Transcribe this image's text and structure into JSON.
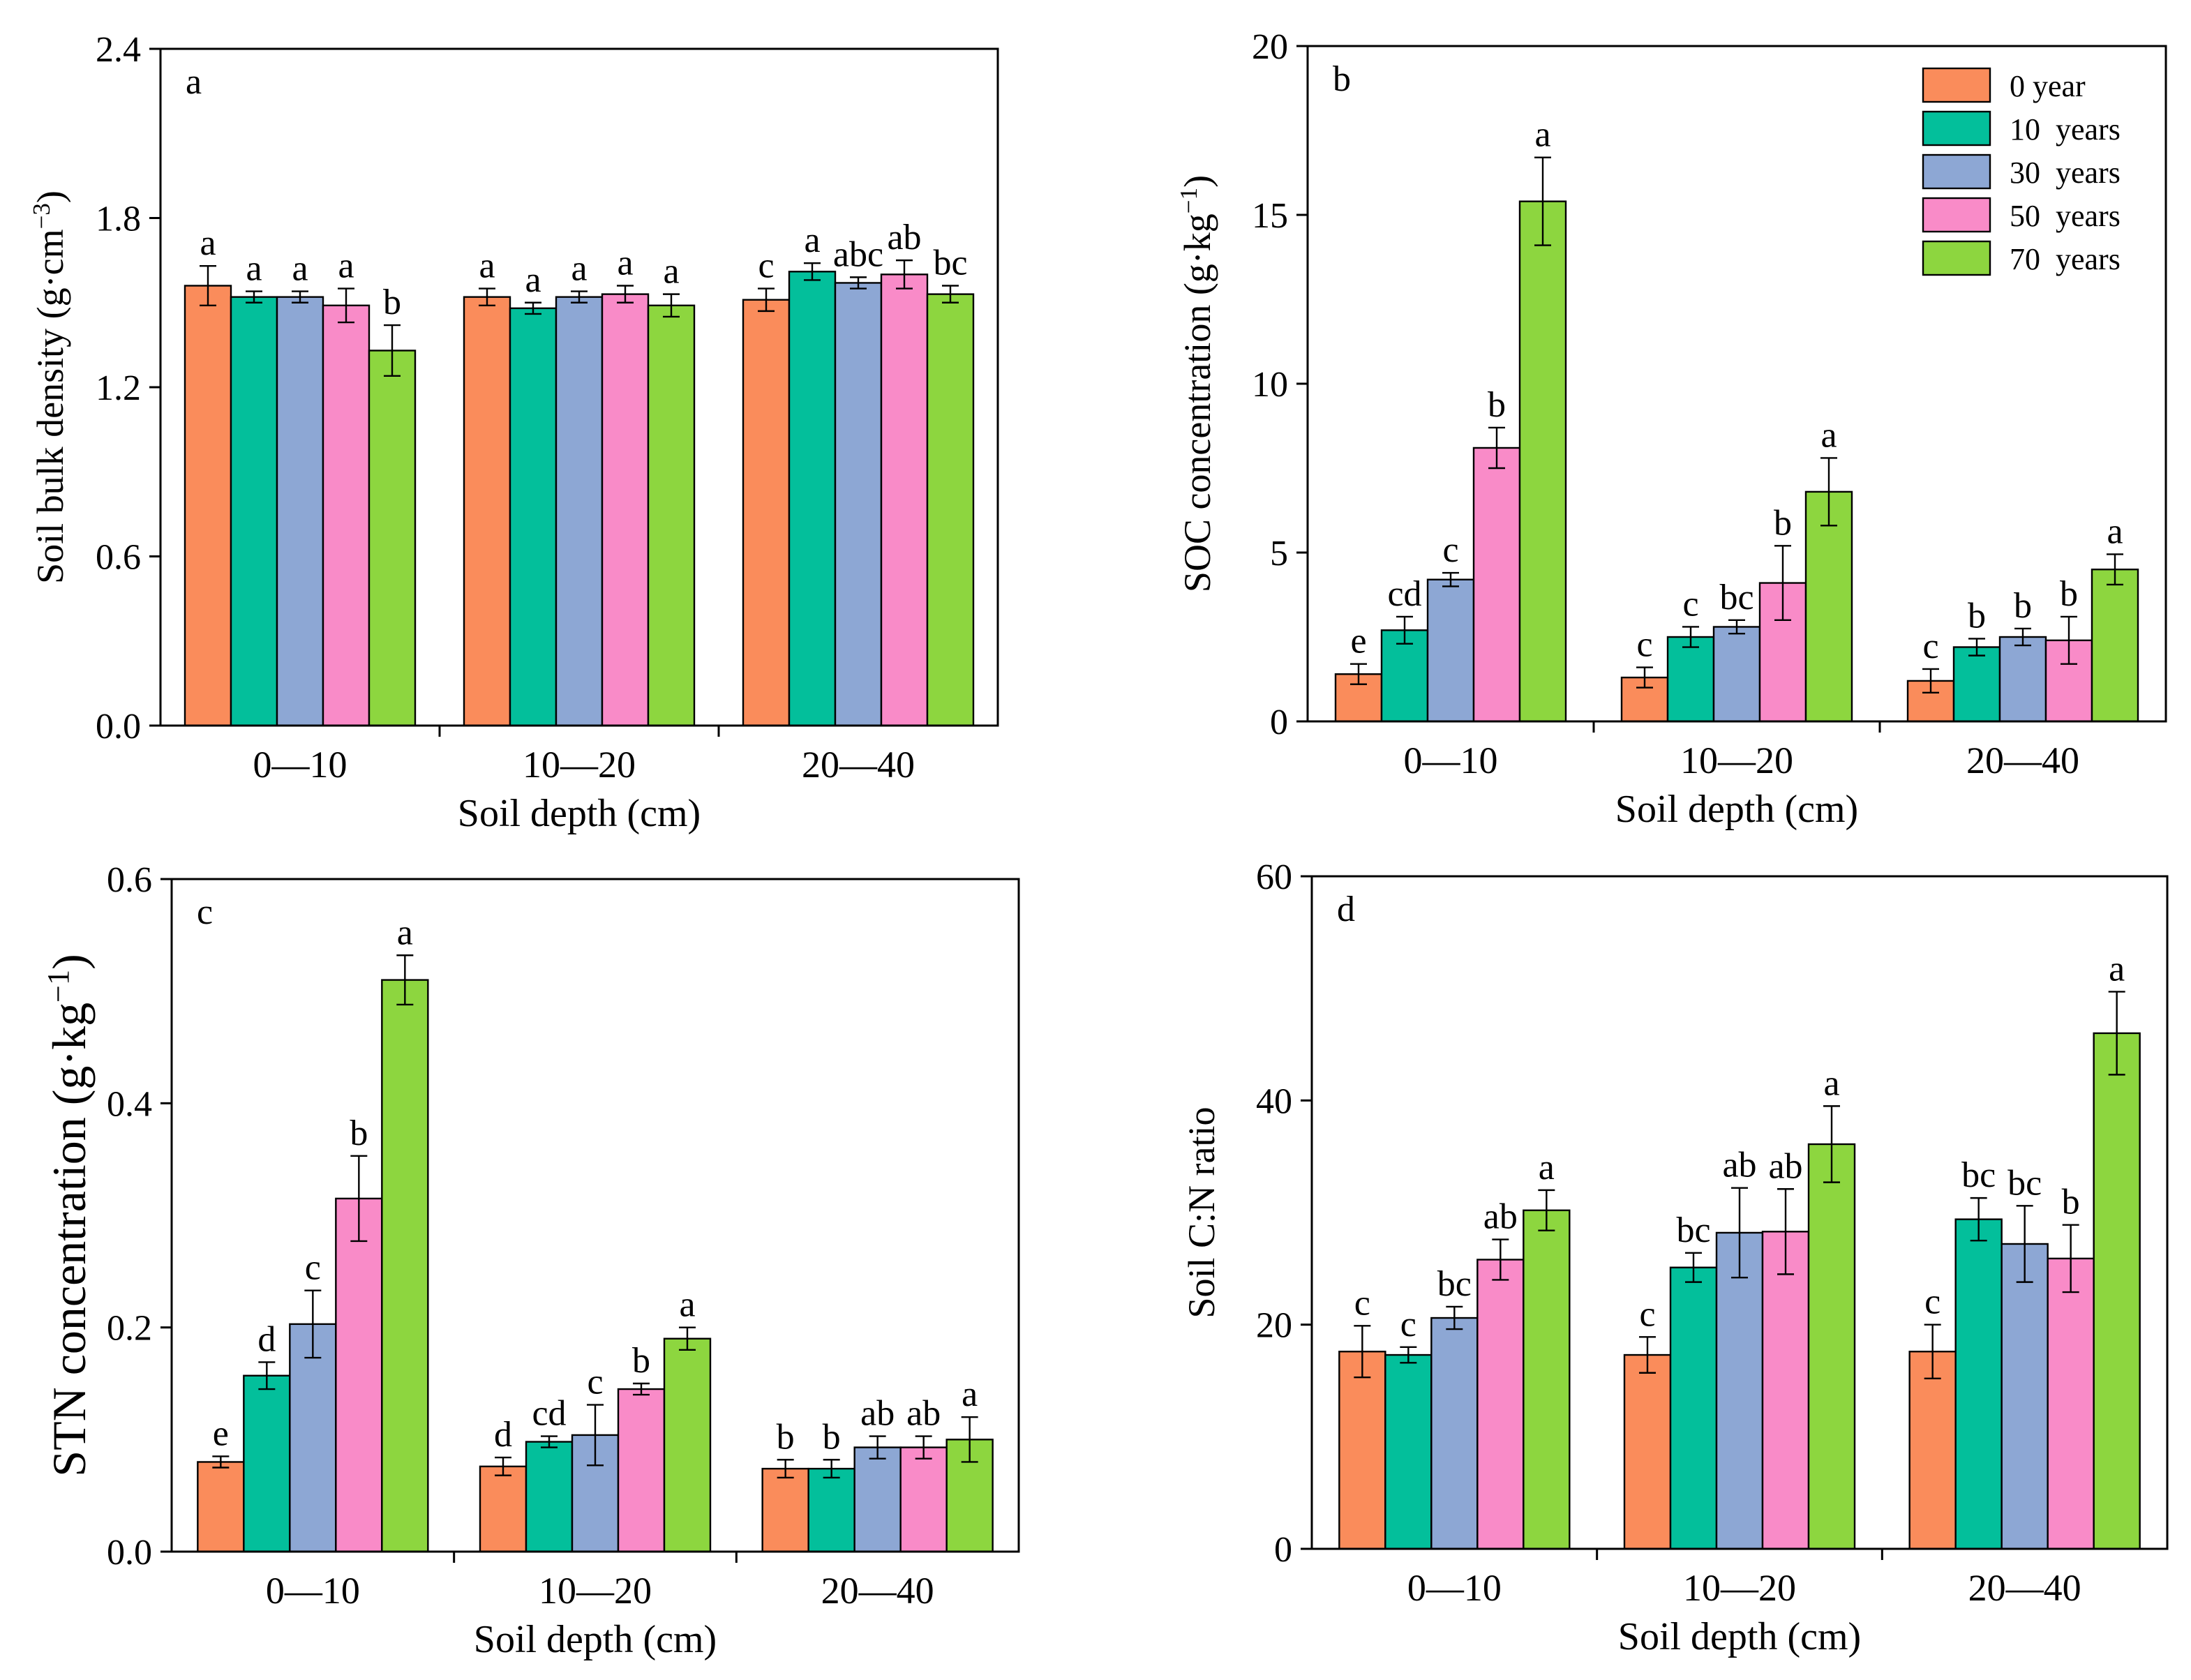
{
  "chart_data": [
    {
      "type": "bar",
      "panel": "a",
      "xlabel": "Soil depth (cm)",
      "ylabel": {
        "text": "Soil bulk density (g·cm",
        "sup": "−3",
        "end": ")"
      },
      "categories": [
        "0—10",
        "10—20",
        "20—40"
      ],
      "ylim": [
        0,
        2.4
      ],
      "yticks": [
        {
          "value": 0,
          "label": "0.0"
        },
        0.6,
        1.2,
        1.8,
        2.4
      ],
      "series": [
        {
          "color": "#fa8c5b",
          "values": [
            1.56,
            1.52,
            1.51
          ],
          "errors": [
            0.07,
            0.03,
            0.04
          ],
          "letters": [
            "a",
            "a",
            "c"
          ]
        },
        {
          "color": "#03bf9b",
          "values": [
            1.52,
            1.48,
            1.61
          ],
          "errors": [
            0.02,
            0.02,
            0.03
          ],
          "letters": [
            "a",
            "a",
            "a"
          ]
        },
        {
          "color": "#8da7d4",
          "values": [
            1.52,
            1.52,
            1.57
          ],
          "errors": [
            0.02,
            0.02,
            0.02
          ],
          "letters": [
            "a",
            "a",
            "abc"
          ]
        },
        {
          "color": "#f98bc8",
          "values": [
            1.49,
            1.53,
            1.6
          ],
          "errors": [
            0.06,
            0.03,
            0.05
          ],
          "letters": [
            "a",
            "a",
            "ab"
          ]
        },
        {
          "color": "#8dd63f",
          "values": [
            1.33,
            1.49,
            1.53
          ],
          "errors": [
            0.09,
            0.04,
            0.03
          ],
          "letters": [
            "b",
            "a",
            "bc"
          ]
        }
      ]
    },
    {
      "type": "bar",
      "panel": "b",
      "xlabel": "Soil depth (cm)",
      "ylabel": {
        "text": "SOC concentration (g·kg",
        "sup": "−1",
        "end": ")"
      },
      "categories": [
        "0—10",
        "10—20",
        "20—40"
      ],
      "ylim": [
        0,
        20
      ],
      "yticks": [
        0,
        5,
        10,
        15,
        20
      ],
      "legend": "upper right",
      "series": [
        {
          "name": "0 year",
          "color": "#fa8c5b",
          "values": [
            1.4,
            1.3,
            1.2
          ],
          "errors": [
            0.3,
            0.3,
            0.35
          ],
          "letters": [
            "e",
            "c",
            "c"
          ]
        },
        {
          "name": "10  years",
          "color": "#03bf9b",
          "values": [
            2.7,
            2.5,
            2.2
          ],
          "errors": [
            0.4,
            0.3,
            0.25
          ],
          "letters": [
            "cd",
            "c",
            "b"
          ]
        },
        {
          "name": "30  years",
          "color": "#8da7d4",
          "values": [
            4.2,
            2.8,
            2.5
          ],
          "errors": [
            0.2,
            0.2,
            0.25
          ],
          "letters": [
            "c",
            "bc",
            "b"
          ]
        },
        {
          "name": "50  years",
          "color": "#f98bc8",
          "values": [
            8.1,
            4.1,
            2.4
          ],
          "errors": [
            0.6,
            1.1,
            0.7
          ],
          "letters": [
            "b",
            "b",
            "b"
          ]
        },
        {
          "name": "70  years",
          "color": "#8dd63f",
          "values": [
            15.4,
            6.8,
            4.5
          ],
          "errors": [
            1.3,
            1.0,
            0.45
          ],
          "letters": [
            "a",
            "a",
            "a"
          ]
        }
      ]
    },
    {
      "type": "bar",
      "panel": "c",
      "xlabel": "Soil depth (cm)",
      "ylabel": {
        "text": "STN concentration (g·kg",
        "sup": "−1",
        "end": ")"
      },
      "categories": [
        "0—10",
        "10—20",
        "20—40"
      ],
      "ylim": [
        0,
        0.6
      ],
      "yticks": [
        {
          "value": 0,
          "label": "0.0"
        },
        0.2,
        0.4,
        0.6
      ],
      "series": [
        {
          "color": "#fa8c5b",
          "values": [
            0.08,
            0.076,
            0.074
          ],
          "errors": [
            0.005,
            0.008,
            0.008
          ],
          "letters": [
            "e",
            "d",
            "b"
          ]
        },
        {
          "color": "#03bf9b",
          "values": [
            0.157,
            0.098,
            0.074
          ],
          "errors": [
            0.012,
            0.005,
            0.008
          ],
          "letters": [
            "d",
            "cd",
            "b"
          ]
        },
        {
          "color": "#8da7d4",
          "values": [
            0.203,
            0.104,
            0.093
          ],
          "errors": [
            0.03,
            0.027,
            0.01
          ],
          "letters": [
            "c",
            "c",
            "ab"
          ]
        },
        {
          "color": "#f98bc8",
          "values": [
            0.315,
            0.145,
            0.093
          ],
          "errors": [
            0.038,
            0.005,
            0.01
          ],
          "letters": [
            "b",
            "b",
            "ab"
          ]
        },
        {
          "color": "#8dd63f",
          "values": [
            0.51,
            0.19,
            0.1
          ],
          "errors": [
            0.022,
            0.01,
            0.02
          ],
          "letters": [
            "a",
            "a",
            "a"
          ]
        }
      ]
    },
    {
      "type": "bar",
      "panel": "d",
      "xlabel": "Soil depth (cm)",
      "ylabel": {
        "text": "Soil C:N ratio"
      },
      "categories": [
        "0—10",
        "10—20",
        "20—40"
      ],
      "ylim": [
        0,
        60
      ],
      "yticks": [
        0,
        20,
        40,
        60
      ],
      "series": [
        {
          "color": "#fa8c5b",
          "values": [
            17.6,
            17.3,
            17.6
          ],
          "errors": [
            2.3,
            1.6,
            2.4
          ],
          "letters": [
            "c",
            "c",
            "c"
          ]
        },
        {
          "color": "#03bf9b",
          "values": [
            17.3,
            25.1,
            29.4
          ],
          "errors": [
            0.7,
            1.3,
            1.9
          ],
          "letters": [
            "c",
            "bc",
            "bc"
          ]
        },
        {
          "color": "#8da7d4",
          "values": [
            20.6,
            28.2,
            27.2
          ],
          "errors": [
            1.0,
            4.0,
            3.4
          ],
          "letters": [
            "bc",
            "ab",
            "bc"
          ]
        },
        {
          "color": "#f98bc8",
          "values": [
            25.8,
            28.3,
            25.9
          ],
          "errors": [
            1.8,
            3.8,
            3.0
          ],
          "letters": [
            "ab",
            "ab",
            "b"
          ]
        },
        {
          "color": "#8dd63f",
          "values": [
            30.2,
            36.1,
            46
          ],
          "errors": [
            1.8,
            3.4,
            3.7
          ],
          "letters": [
            "a",
            "a",
            "a"
          ]
        }
      ]
    }
  ]
}
